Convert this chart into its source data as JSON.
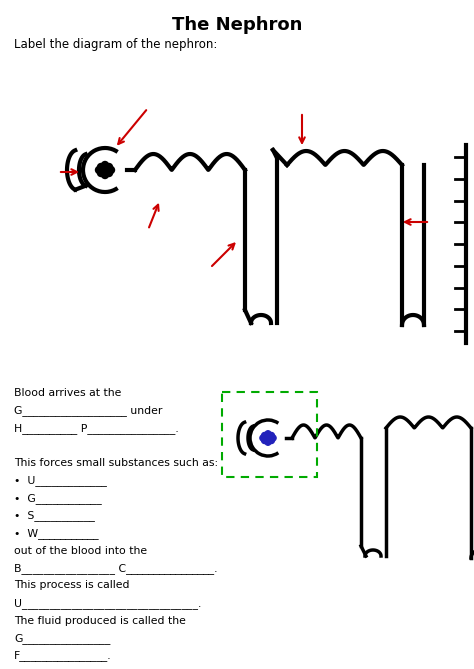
{
  "title": "The Nephron",
  "subtitle": "Label the diagram of the nephron:",
  "background_color": "#ffffff",
  "text_color": "#000000",
  "diagram_color": "#000000",
  "red_arrow_color": "#cc0000",
  "green_box_color": "#00aa00",
  "blue_glom_color": "#2222bb",
  "line_width": 3.0,
  "spur_lw": 2.0,
  "text_lines": [
    "Blood arrives at the",
    "G___________________ under",
    "H__________ P________________.",
    "",
    "This forces small substances such as:",
    "•  U_____________",
    "•  G____________",
    "•  S___________",
    "•  W___________",
    "out of the blood into the",
    "B_________________ C________________.",
    "This process is called",
    "U________________________________.",
    "The fluid produced is called the",
    "G________________",
    "F________________."
  ]
}
